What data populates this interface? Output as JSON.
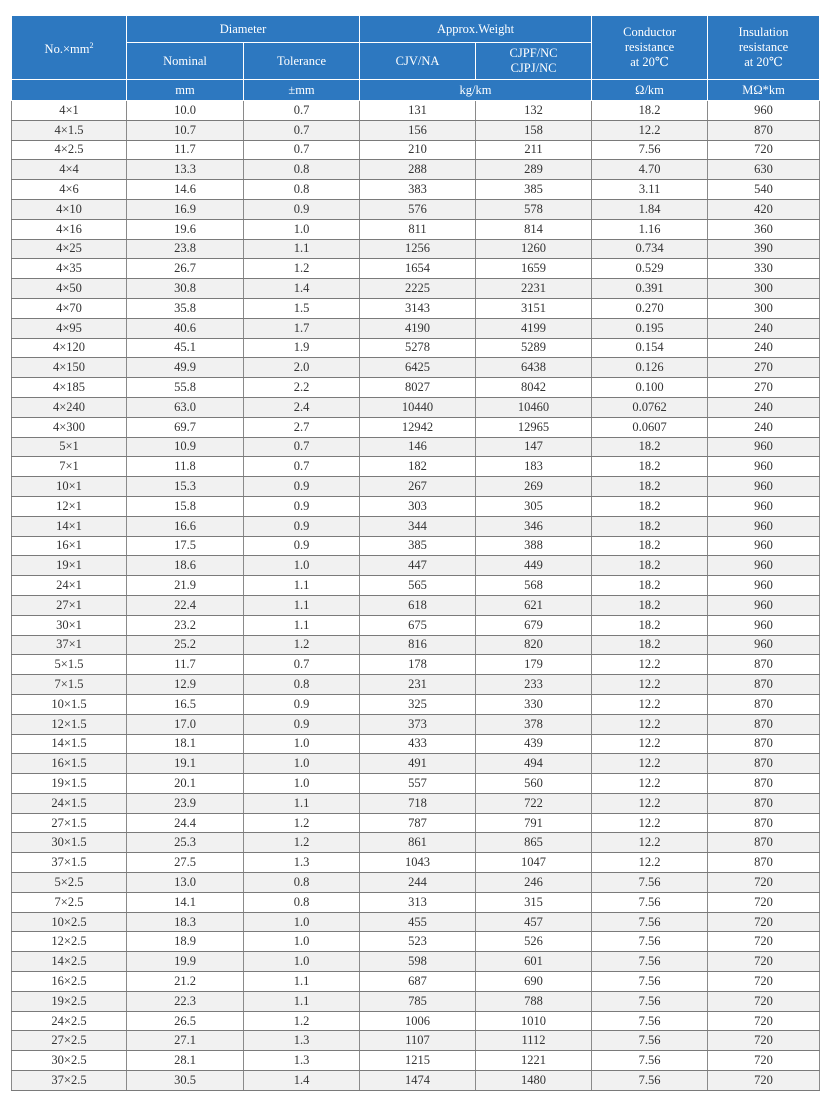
{
  "header": {
    "col_no": "No.×mm",
    "col_no_sup": "2",
    "diameter": "Diameter",
    "nominal": "Nominal",
    "tolerance": "Tolerance",
    "weight": "Approx.Weight",
    "cjv": "CJV/NA",
    "cjpf_1": "CJPF/NC",
    "cjpf_2": "CJPJ/NC",
    "cond_1": "Conductor",
    "cond_2": "resistance",
    "cond_3": "at 20℃",
    "ins_1": "Insulation",
    "ins_2": "resistance",
    "ins_3": "at 20℃",
    "unit_mm": "mm",
    "unit_tol": "±mm",
    "unit_weight": "kg/km",
    "unit_cond": "Ω/km",
    "unit_ins": "MΩ*km"
  },
  "rows": [
    [
      "4×1",
      "10.0",
      "0.7",
      "131",
      "132",
      "18.2",
      "960"
    ],
    [
      "4×1.5",
      "10.7",
      "0.7",
      "156",
      "158",
      "12.2",
      "870"
    ],
    [
      "4×2.5",
      "11.7",
      "0.7",
      "210",
      "211",
      "7.56",
      "720"
    ],
    [
      "4×4",
      "13.3",
      "0.8",
      "288",
      "289",
      "4.70",
      "630"
    ],
    [
      "4×6",
      "14.6",
      "0.8",
      "383",
      "385",
      "3.11",
      "540"
    ],
    [
      "4×10",
      "16.9",
      "0.9",
      "576",
      "578",
      "1.84",
      "420"
    ],
    [
      "4×16",
      "19.6",
      "1.0",
      "811",
      "814",
      "1.16",
      "360"
    ],
    [
      "4×25",
      "23.8",
      "1.1",
      "1256",
      "1260",
      "0.734",
      "390"
    ],
    [
      "4×35",
      "26.7",
      "1.2",
      "1654",
      "1659",
      "0.529",
      "330"
    ],
    [
      "4×50",
      "30.8",
      "1.4",
      "2225",
      "2231",
      "0.391",
      "300"
    ],
    [
      "4×70",
      "35.8",
      "1.5",
      "3143",
      "3151",
      "0.270",
      "300"
    ],
    [
      "4×95",
      "40.6",
      "1.7",
      "4190",
      "4199",
      "0.195",
      "240"
    ],
    [
      "4×120",
      "45.1",
      "1.9",
      "5278",
      "5289",
      "0.154",
      "240"
    ],
    [
      "4×150",
      "49.9",
      "2.0",
      "6425",
      "6438",
      "0.126",
      "270"
    ],
    [
      "4×185",
      "55.8",
      "2.2",
      "8027",
      "8042",
      "0.100",
      "270"
    ],
    [
      "4×240",
      "63.0",
      "2.4",
      "10440",
      "10460",
      "0.0762",
      "240"
    ],
    [
      "4×300",
      "69.7",
      "2.7",
      "12942",
      "12965",
      "0.0607",
      "240"
    ],
    [
      "5×1",
      "10.9",
      "0.7",
      "146",
      "147",
      "18.2",
      "960"
    ],
    [
      "7×1",
      "11.8",
      "0.7",
      "182",
      "183",
      "18.2",
      "960"
    ],
    [
      "10×1",
      "15.3",
      "0.9",
      "267",
      "269",
      "18.2",
      "960"
    ],
    [
      "12×1",
      "15.8",
      "0.9",
      "303",
      "305",
      "18.2",
      "960"
    ],
    [
      "14×1",
      "16.6",
      "0.9",
      "344",
      "346",
      "18.2",
      "960"
    ],
    [
      "16×1",
      "17.5",
      "0.9",
      "385",
      "388",
      "18.2",
      "960"
    ],
    [
      "19×1",
      "18.6",
      "1.0",
      "447",
      "449",
      "18.2",
      "960"
    ],
    [
      "24×1",
      "21.9",
      "1.1",
      "565",
      "568",
      "18.2",
      "960"
    ],
    [
      "27×1",
      "22.4",
      "1.1",
      "618",
      "621",
      "18.2",
      "960"
    ],
    [
      "30×1",
      "23.2",
      "1.1",
      "675",
      "679",
      "18.2",
      "960"
    ],
    [
      "37×1",
      "25.2",
      "1.2",
      "816",
      "820",
      "18.2",
      "960"
    ],
    [
      "5×1.5",
      "11.7",
      "0.7",
      "178",
      "179",
      "12.2",
      "870"
    ],
    [
      "7×1.5",
      "12.9",
      "0.8",
      "231",
      "233",
      "12.2",
      "870"
    ],
    [
      "10×1.5",
      "16.5",
      "0.9",
      "325",
      "330",
      "12.2",
      "870"
    ],
    [
      "12×1.5",
      "17.0",
      "0.9",
      "373",
      "378",
      "12.2",
      "870"
    ],
    [
      "14×1.5",
      "18.1",
      "1.0",
      "433",
      "439",
      "12.2",
      "870"
    ],
    [
      "16×1.5",
      "19.1",
      "1.0",
      "491",
      "494",
      "12.2",
      "870"
    ],
    [
      "19×1.5",
      "20.1",
      "1.0",
      "557",
      "560",
      "12.2",
      "870"
    ],
    [
      "24×1.5",
      "23.9",
      "1.1",
      "718",
      "722",
      "12.2",
      "870"
    ],
    [
      "27×1.5",
      "24.4",
      "1.2",
      "787",
      "791",
      "12.2",
      "870"
    ],
    [
      "30×1.5",
      "25.3",
      "1.2",
      "861",
      "865",
      "12.2",
      "870"
    ],
    [
      "37×1.5",
      "27.5",
      "1.3",
      "1043",
      "1047",
      "12.2",
      "870"
    ],
    [
      "5×2.5",
      "13.0",
      "0.8",
      "244",
      "246",
      "7.56",
      "720"
    ],
    [
      "7×2.5",
      "14.1",
      "0.8",
      "313",
      "315",
      "7.56",
      "720"
    ],
    [
      "10×2.5",
      "18.3",
      "1.0",
      "455",
      "457",
      "7.56",
      "720"
    ],
    [
      "12×2.5",
      "18.9",
      "1.0",
      "523",
      "526",
      "7.56",
      "720"
    ],
    [
      "14×2.5",
      "19.9",
      "1.0",
      "598",
      "601",
      "7.56",
      "720"
    ],
    [
      "16×2.5",
      "21.2",
      "1.1",
      "687",
      "690",
      "7.56",
      "720"
    ],
    [
      "19×2.5",
      "22.3",
      "1.1",
      "785",
      "788",
      "7.56",
      "720"
    ],
    [
      "24×2.5",
      "26.5",
      "1.2",
      "1006",
      "1010",
      "7.56",
      "720"
    ],
    [
      "27×2.5",
      "27.1",
      "1.3",
      "1107",
      "1112",
      "7.56",
      "720"
    ],
    [
      "30×2.5",
      "28.1",
      "1.3",
      "1215",
      "1221",
      "7.56",
      "720"
    ],
    [
      "37×2.5",
      "30.5",
      "1.4",
      "1474",
      "1480",
      "7.56",
      "720"
    ]
  ],
  "colors": {
    "header_bg": "#2d78c0",
    "stripe": "#f1f1f1"
  }
}
